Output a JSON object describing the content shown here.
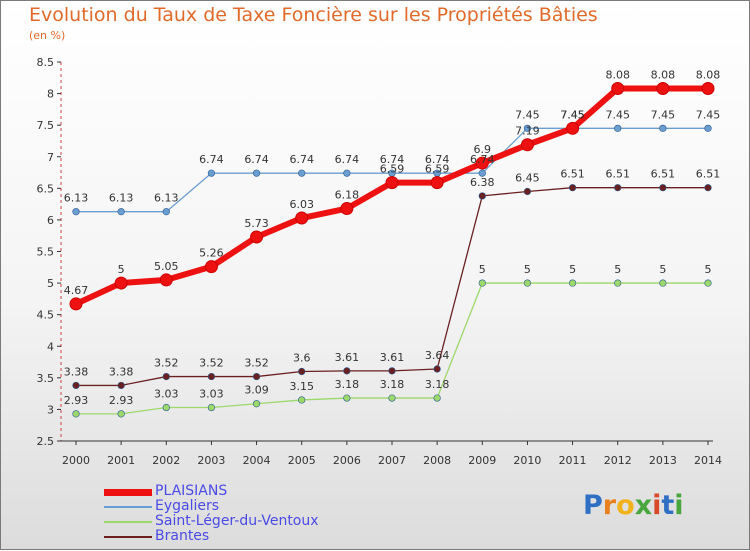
{
  "title": "Evolution du Taux de Taxe Foncière sur les Propriétés Bâties",
  "subtitle": "(en %)",
  "logo": {
    "text": "Proxiti",
    "letter_colors": [
      "#2f6fc4",
      "#e8801e",
      "#f2b21c",
      "#49a63f",
      "#d84a2a",
      "#2f6fc4",
      "#49a63f"
    ]
  },
  "chart_data": {
    "type": "line",
    "x": [
      "2000",
      "2001",
      "2002",
      "2003",
      "2004",
      "2005",
      "2006",
      "2007",
      "2008",
      "2009",
      "2010",
      "2011",
      "2012",
      "2013",
      "2014"
    ],
    "ylim": [
      2.5,
      8.5
    ],
    "yticks": [
      "2.5",
      "3",
      "3.5",
      "4",
      "4.5",
      "5",
      "5.5",
      "6",
      "6.5",
      "7",
      "7.5",
      "8",
      "8.5"
    ],
    "grid": false,
    "legend_position": "bottom-left",
    "series": [
      {
        "name": "PLAISIANS",
        "color": "#ee1111",
        "values": [
          4.67,
          5,
          5.05,
          5.26,
          5.73,
          6.03,
          6.18,
          6.59,
          6.59,
          6.9,
          7.19,
          7.45,
          8.08,
          8.08,
          8.08
        ],
        "labels": [
          "4.67",
          "5",
          "5.05",
          "5.26",
          "5.73",
          "6.03",
          "6.18",
          "6.59",
          "6.59",
          "6.9",
          "7.19",
          "7.45",
          "8.08",
          "8.08",
          "8.08"
        ]
      },
      {
        "name": "Eygaliers",
        "color": "#6a9ed0",
        "values": [
          6.13,
          6.13,
          6.13,
          6.74,
          6.74,
          6.74,
          6.74,
          6.74,
          6.74,
          6.74,
          7.45,
          7.45,
          7.45,
          7.45,
          7.45
        ],
        "labels": [
          "6.13",
          "6.13",
          "6.13",
          "6.74",
          "6.74",
          "6.74",
          "6.74",
          "6.74",
          "6.74",
          "6.74",
          "7.45",
          "7.45",
          "7.45",
          "7.45",
          "7.45"
        ]
      },
      {
        "name": "Saint-Léger-du-Ventoux",
        "color": "#9cd86a",
        "values": [
          2.93,
          2.93,
          3.03,
          3.03,
          3.09,
          3.15,
          3.18,
          3.18,
          3.18,
          5,
          5,
          5,
          5,
          5,
          5
        ],
        "labels": [
          "2.93",
          "2.93",
          "3.03",
          "3.03",
          "3.09",
          "3.15",
          "3.18",
          "3.18",
          "3.18",
          "5",
          "5",
          "5",
          "5",
          "5",
          "5"
        ]
      },
      {
        "name": "Brantes",
        "color": "#6b2020",
        "values": [
          3.38,
          3.38,
          3.52,
          3.52,
          3.52,
          3.6,
          3.61,
          3.61,
          3.64,
          6.38,
          6.45,
          6.51,
          6.51,
          6.51,
          6.51
        ],
        "labels": [
          "3.38",
          "3.38",
          "3.52",
          "3.52",
          "3.52",
          "3.6",
          "3.61",
          "3.61",
          "3.64",
          "6.38",
          "6.45",
          "6.51",
          "6.51",
          "6.51",
          "6.51"
        ]
      }
    ]
  }
}
